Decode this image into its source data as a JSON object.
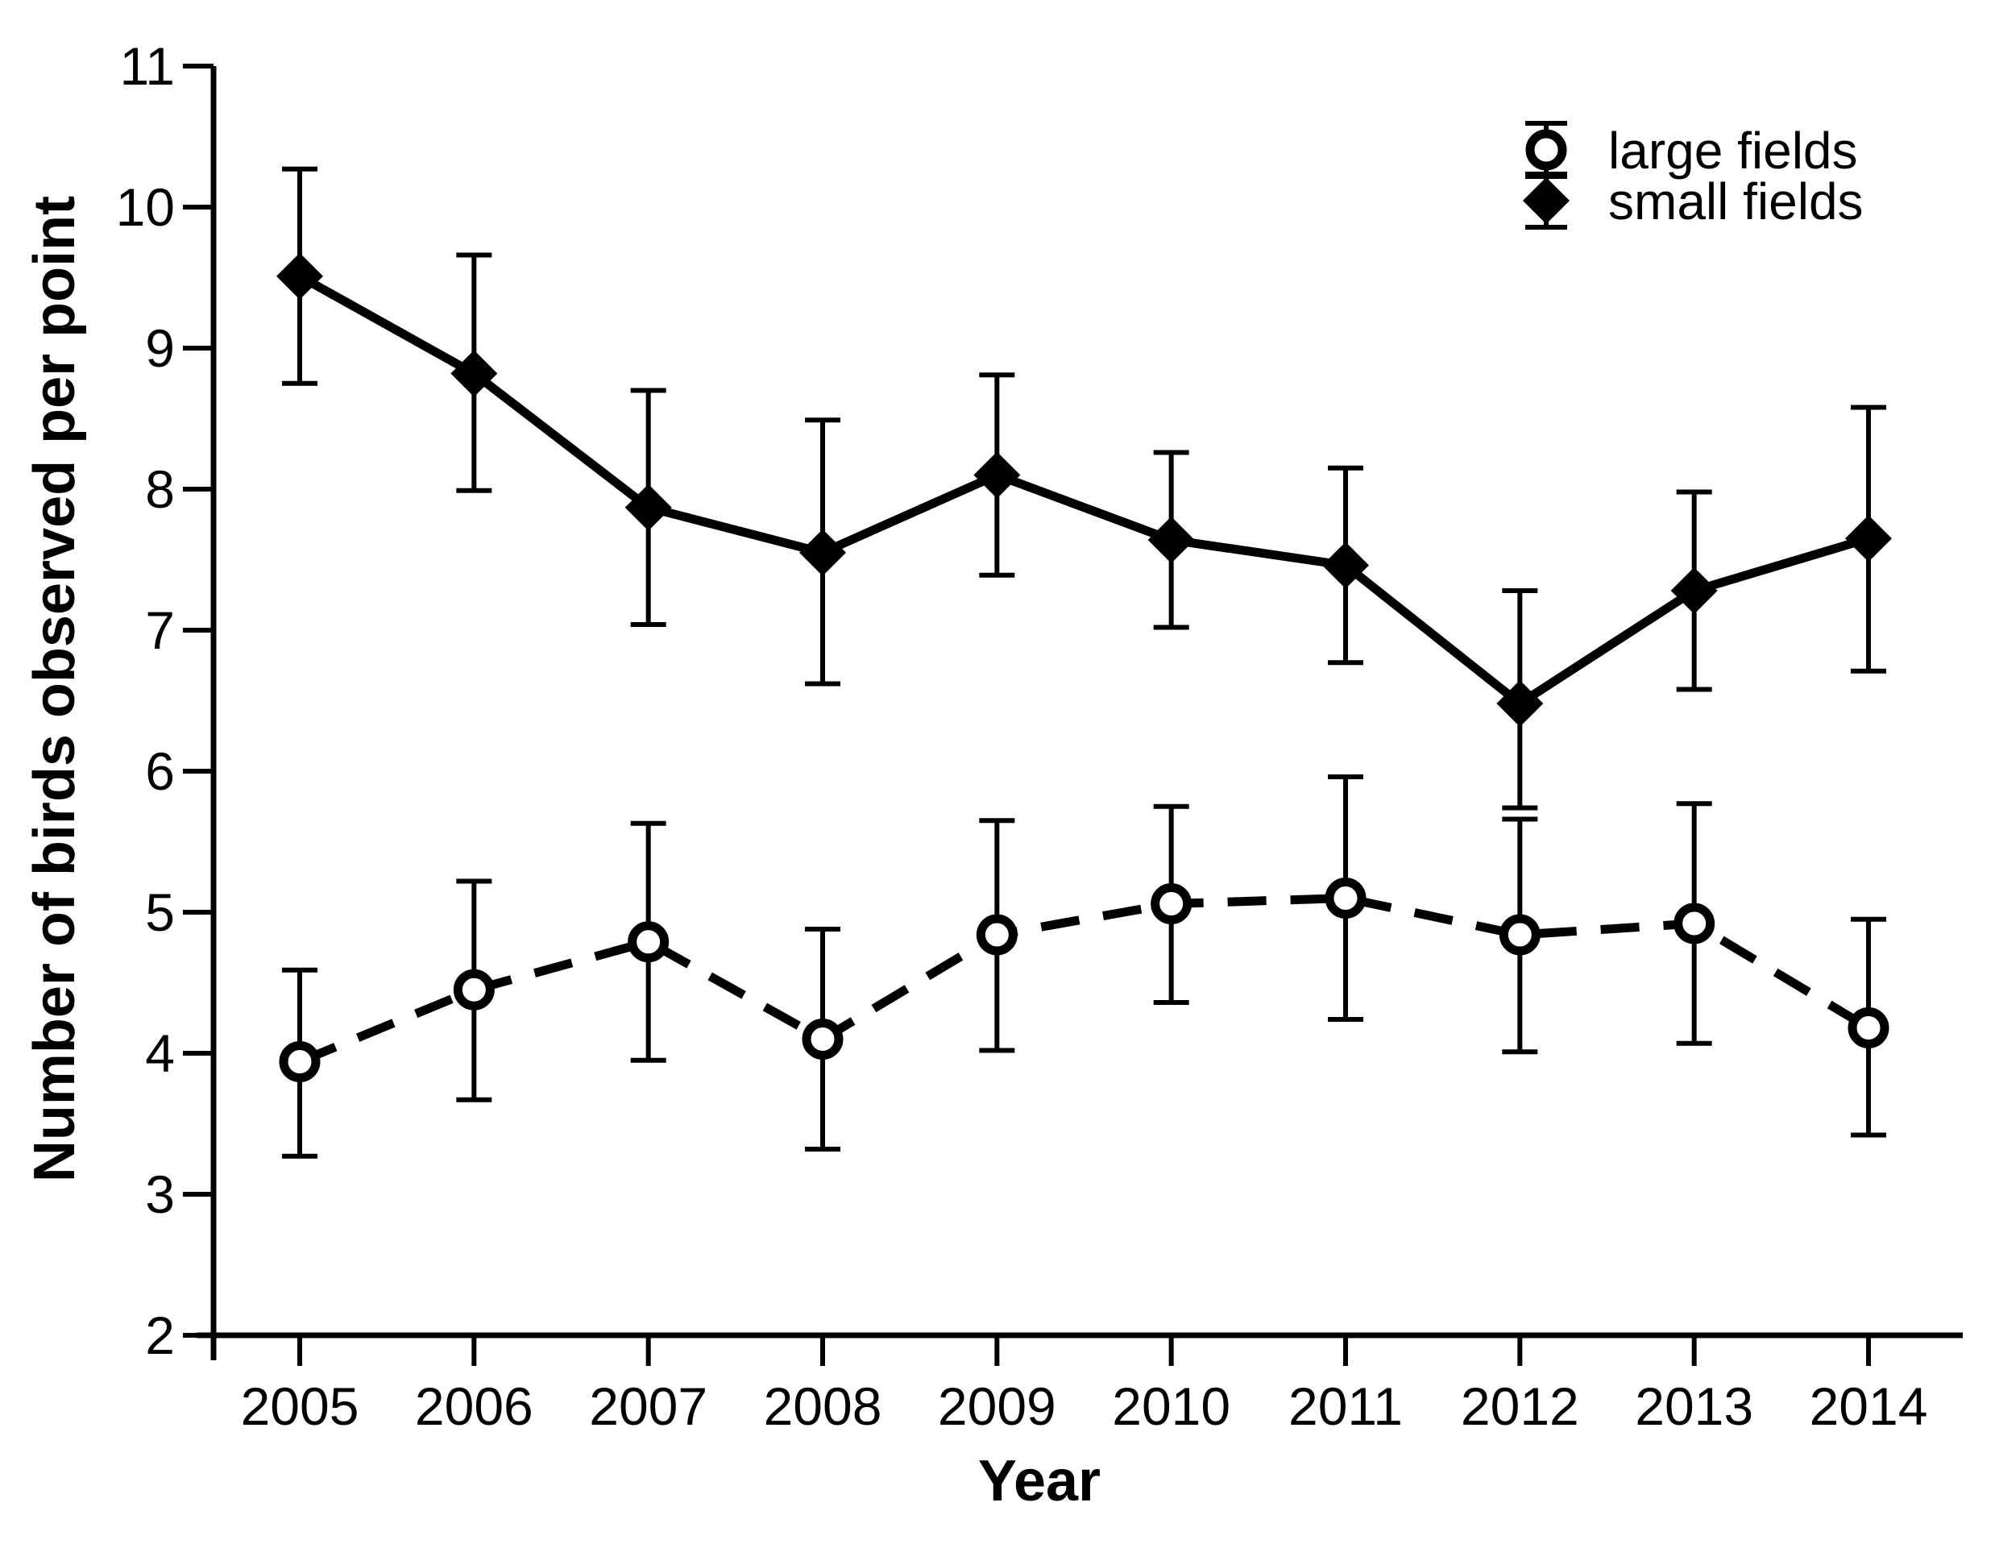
{
  "figure": {
    "background": "#ffffff",
    "foreground": "#000000"
  },
  "chart_data": {
    "type": "line",
    "title": "",
    "xlabel": "Year",
    "ylabel": "Number of birds observed per point",
    "x": [
      2005,
      2006,
      2007,
      2008,
      2009,
      2010,
      2011,
      2012,
      2013,
      2014
    ],
    "ylim": [
      2,
      11
    ],
    "yticks": [
      2,
      3,
      4,
      5,
      6,
      7,
      8,
      9,
      10,
      11
    ],
    "grid": false,
    "error_bars": true,
    "legend_position": "top-right",
    "legend": [
      "large fields",
      "small fields"
    ],
    "series": [
      {
        "name": "large fields",
        "marker": "open-circle",
        "line_style": "dashed",
        "color": "#000000",
        "values": [
          3.94,
          4.45,
          4.79,
          4.1,
          4.84,
          5.06,
          5.1,
          4.84,
          4.92,
          4.18
        ],
        "err_low": [
          3.27,
          3.67,
          3.95,
          3.32,
          4.02,
          4.36,
          4.24,
          4.01,
          4.07,
          3.42
        ],
        "err_high": [
          4.59,
          5.22,
          5.63,
          4.88,
          5.65,
          5.75,
          5.96,
          5.66,
          5.77,
          4.95
        ]
      },
      {
        "name": "small fields",
        "marker": "filled-diamond",
        "line_style": "solid",
        "color": "#000000",
        "values": [
          9.51,
          8.82,
          7.87,
          7.55,
          8.1,
          7.64,
          7.46,
          6.48,
          7.28,
          7.65
        ],
        "err_low": [
          8.75,
          7.99,
          7.04,
          6.62,
          7.39,
          7.02,
          6.77,
          5.74,
          6.58,
          6.71
        ],
        "err_high": [
          10.27,
          9.66,
          8.7,
          8.49,
          8.81,
          8.26,
          8.15,
          7.28,
          7.98,
          8.58
        ]
      }
    ]
  }
}
